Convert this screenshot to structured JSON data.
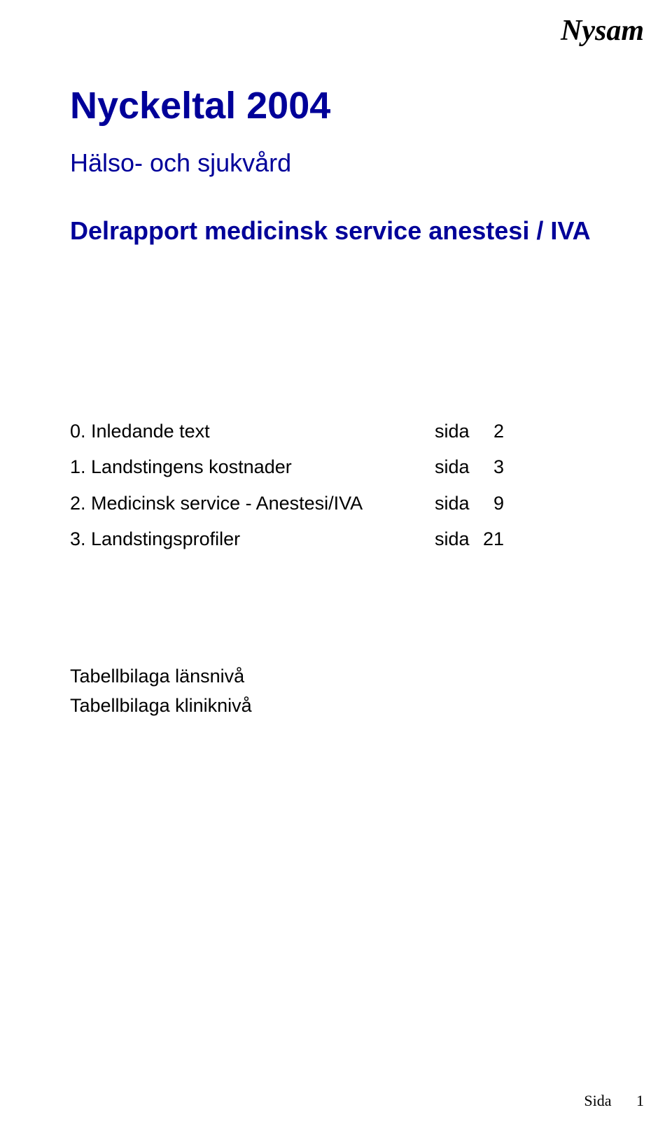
{
  "brand": "Nysam",
  "title_color": "#000099",
  "title": "Nyckeltal 2004",
  "subtitle": "Hälso- och sjukvård",
  "report_line": "Delrapport medicinsk service anestesi / IVA",
  "toc": {
    "page_word": "sida",
    "items": [
      {
        "label": "0. Inledande text",
        "page": "2"
      },
      {
        "label": "1. Landstingens kostnader",
        "page": "3"
      },
      {
        "label": "2. Medicinsk service - Anestesi/IVA",
        "page": "9"
      },
      {
        "label": "3. Landstingsprofiler",
        "page": "21"
      }
    ]
  },
  "appendix": [
    "Tabellbilaga länsnivå",
    "Tabellbilaga kliniknivå"
  ],
  "footer": {
    "label": "Sida",
    "num": "1"
  }
}
